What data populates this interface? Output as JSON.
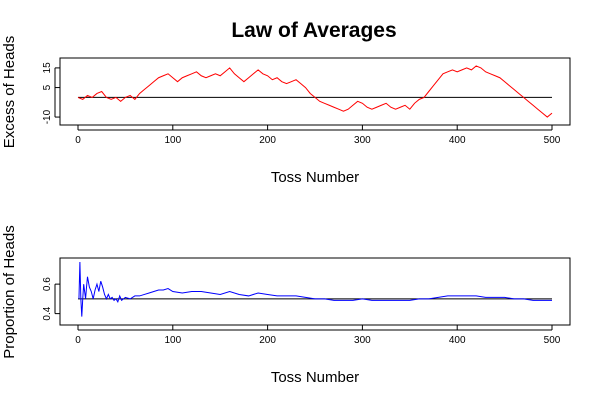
{
  "title": "Law of Averages",
  "colors": {
    "excess": "#ff0000",
    "proportion": "#0000ff",
    "reference": "#000000"
  },
  "chart_data": [
    {
      "type": "line",
      "xlabel": "Toss Number",
      "ylabel": "Excess of Heads",
      "xlim": [
        0,
        500
      ],
      "ylim": [
        -12,
        18
      ],
      "xticks": [
        0,
        100,
        200,
        300,
        400,
        500
      ],
      "yticks": [
        -10,
        5,
        15
      ],
      "reference_line": 0,
      "series": [
        {
          "values": [
            [
              0,
              0
            ],
            [
              5,
              -1
            ],
            [
              10,
              1
            ],
            [
              15,
              0
            ],
            [
              20,
              2
            ],
            [
              25,
              3
            ],
            [
              30,
              0
            ],
            [
              35,
              -1
            ],
            [
              40,
              0
            ],
            [
              45,
              -2
            ],
            [
              50,
              0
            ],
            [
              55,
              1
            ],
            [
              60,
              -1
            ],
            [
              65,
              2
            ],
            [
              70,
              4
            ],
            [
              75,
              6
            ],
            [
              80,
              8
            ],
            [
              85,
              10
            ],
            [
              90,
              11
            ],
            [
              95,
              12
            ],
            [
              100,
              10
            ],
            [
              105,
              8
            ],
            [
              110,
              10
            ],
            [
              115,
              11
            ],
            [
              120,
              12
            ],
            [
              125,
              13
            ],
            [
              130,
              11
            ],
            [
              135,
              10
            ],
            [
              140,
              11
            ],
            [
              145,
              12
            ],
            [
              150,
              11
            ],
            [
              155,
              13
            ],
            [
              160,
              15
            ],
            [
              165,
              12
            ],
            [
              170,
              10
            ],
            [
              175,
              8
            ],
            [
              180,
              10
            ],
            [
              185,
              12
            ],
            [
              190,
              14
            ],
            [
              195,
              12
            ],
            [
              200,
              11
            ],
            [
              205,
              9
            ],
            [
              210,
              10
            ],
            [
              215,
              8
            ],
            [
              220,
              7
            ],
            [
              225,
              8
            ],
            [
              230,
              9
            ],
            [
              235,
              7
            ],
            [
              240,
              5
            ],
            [
              245,
              2
            ],
            [
              250,
              0
            ],
            [
              255,
              -2
            ],
            [
              260,
              -3
            ],
            [
              265,
              -4
            ],
            [
              270,
              -5
            ],
            [
              275,
              -6
            ],
            [
              280,
              -7
            ],
            [
              285,
              -6
            ],
            [
              290,
              -4
            ],
            [
              295,
              -2
            ],
            [
              300,
              -3
            ],
            [
              305,
              -5
            ],
            [
              310,
              -6
            ],
            [
              315,
              -5
            ],
            [
              320,
              -4
            ],
            [
              325,
              -3
            ],
            [
              330,
              -5
            ],
            [
              335,
              -6
            ],
            [
              340,
              -5
            ],
            [
              345,
              -4
            ],
            [
              350,
              -6
            ],
            [
              355,
              -3
            ],
            [
              360,
              -1
            ],
            [
              365,
              0
            ],
            [
              370,
              3
            ],
            [
              375,
              6
            ],
            [
              380,
              9
            ],
            [
              385,
              12
            ],
            [
              390,
              13
            ],
            [
              395,
              14
            ],
            [
              400,
              13
            ],
            [
              405,
              14
            ],
            [
              410,
              15
            ],
            [
              415,
              14
            ],
            [
              420,
              16
            ],
            [
              425,
              15
            ],
            [
              430,
              13
            ],
            [
              435,
              12
            ],
            [
              440,
              11
            ],
            [
              445,
              10
            ],
            [
              450,
              8
            ],
            [
              455,
              6
            ],
            [
              460,
              4
            ],
            [
              465,
              2
            ],
            [
              470,
              0
            ],
            [
              475,
              -2
            ],
            [
              480,
              -4
            ],
            [
              485,
              -6
            ],
            [
              490,
              -8
            ],
            [
              495,
              -10
            ],
            [
              500,
              -8
            ]
          ]
        }
      ]
    },
    {
      "type": "line",
      "xlabel": "Toss Number",
      "ylabel": "Proportion of Heads",
      "xlim": [
        0,
        500
      ],
      "ylim": [
        0.35,
        0.75
      ],
      "xticks": [
        0,
        100,
        200,
        300,
        400,
        500
      ],
      "yticks": [
        0.4,
        0.6
      ],
      "yticklabels": [
        "0.4",
        "0.6"
      ],
      "reference_line": 0.5,
      "series": [
        {
          "values": [
            [
              1,
              0.5
            ],
            [
              2,
              0.75
            ],
            [
              3,
              0.5
            ],
            [
              4,
              0.38
            ],
            [
              5,
              0.5
            ],
            [
              6,
              0.6
            ],
            [
              7,
              0.55
            ],
            [
              8,
              0.5
            ],
            [
              9,
              0.58
            ],
            [
              10,
              0.65
            ],
            [
              12,
              0.58
            ],
            [
              14,
              0.55
            ],
            [
              16,
              0.5
            ],
            [
              18,
              0.56
            ],
            [
              20,
              0.6
            ],
            [
              22,
              0.55
            ],
            [
              24,
              0.62
            ],
            [
              26,
              0.58
            ],
            [
              28,
              0.53
            ],
            [
              30,
              0.5
            ],
            [
              32,
              0.53
            ],
            [
              34,
              0.5
            ],
            [
              36,
              0.51
            ],
            [
              38,
              0.49
            ],
            [
              40,
              0.5
            ],
            [
              42,
              0.48
            ],
            [
              44,
              0.52
            ],
            [
              46,
              0.49
            ],
            [
              48,
              0.5
            ],
            [
              50,
              0.51
            ],
            [
              55,
              0.5
            ],
            [
              60,
              0.52
            ],
            [
              65,
              0.52
            ],
            [
              70,
              0.53
            ],
            [
              75,
              0.54
            ],
            [
              80,
              0.55
            ],
            [
              85,
              0.56
            ],
            [
              90,
              0.56
            ],
            [
              95,
              0.57
            ],
            [
              100,
              0.55
            ],
            [
              110,
              0.54
            ],
            [
              120,
              0.55
            ],
            [
              130,
              0.55
            ],
            [
              140,
              0.54
            ],
            [
              150,
              0.53
            ],
            [
              160,
              0.55
            ],
            [
              170,
              0.53
            ],
            [
              180,
              0.52
            ],
            [
              190,
              0.54
            ],
            [
              200,
              0.53
            ],
            [
              210,
              0.52
            ],
            [
              220,
              0.52
            ],
            [
              230,
              0.52
            ],
            [
              240,
              0.51
            ],
            [
              250,
              0.5
            ],
            [
              260,
              0.5
            ],
            [
              270,
              0.49
            ],
            [
              280,
              0.49
            ],
            [
              290,
              0.49
            ],
            [
              300,
              0.5
            ],
            [
              310,
              0.49
            ],
            [
              320,
              0.49
            ],
            [
              330,
              0.49
            ],
            [
              340,
              0.49
            ],
            [
              350,
              0.49
            ],
            [
              360,
              0.5
            ],
            [
              370,
              0.5
            ],
            [
              380,
              0.51
            ],
            [
              390,
              0.52
            ],
            [
              400,
              0.52
            ],
            [
              410,
              0.52
            ],
            [
              420,
              0.52
            ],
            [
              430,
              0.51
            ],
            [
              440,
              0.51
            ],
            [
              450,
              0.51
            ],
            [
              460,
              0.5
            ],
            [
              470,
              0.5
            ],
            [
              480,
              0.49
            ],
            [
              490,
              0.49
            ],
            [
              500,
              0.49
            ]
          ]
        }
      ]
    }
  ]
}
